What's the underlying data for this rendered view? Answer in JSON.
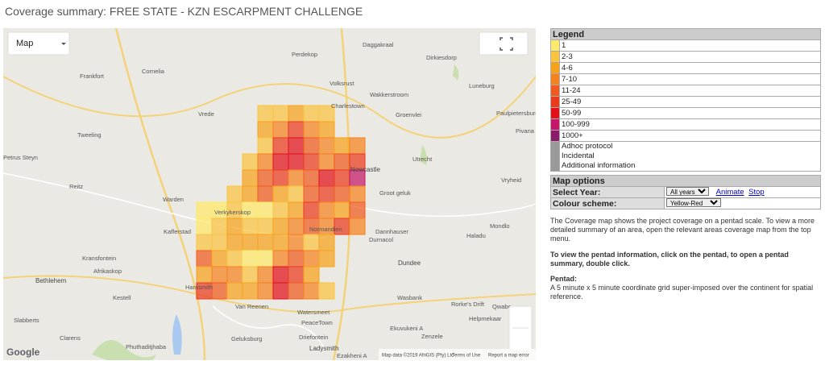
{
  "title": "Coverage summary: FREE STATE - KZN ESCARPMENT CHALLENGE",
  "map": {
    "map_type": "Map",
    "places": [
      "Perdekop",
      "Daggakraal",
      "Dirkiesdorp",
      "Frankfort",
      "Cornelia",
      "Volksrust",
      "Luneburg",
      "Wakkerstroom",
      "Vrede",
      "Charlestown",
      "Groenvlei",
      "Paulpietersburg",
      "Pivana",
      "Tweeling",
      "Petrus Steyn",
      "Utrecht",
      "Newcastle",
      "Reitz",
      "Groot geluk",
      "Vryheid",
      "Warden",
      "Verkykerskop",
      "Kafferstad",
      "Normandien",
      "Dannhauser",
      "Durnacol",
      "Mondlo",
      "Haladu",
      "Kransfontein",
      "Dundee",
      "Afrikaskop",
      "Bethlehem",
      "Harrismith",
      "Kestell",
      "Wasbank",
      "Rorke's Drift",
      "Qwabe",
      "Van Reenen",
      "Watersmeet",
      "Slabberts",
      "PeaceTown",
      "Helpmekaar",
      "Ekuvukeni A",
      "Clarens",
      "Zenzele",
      "Phuthaditjhaba",
      "Geluksburg",
      "Driefontein",
      "Ladysmith",
      "Ezakheni A"
    ],
    "logo": "Google",
    "attribution": "Map data ©2019 AfriGIS (Pty) Ltd",
    "terms": "Terms of Use",
    "report": "Report a map error"
  },
  "legend": {
    "title": "Legend",
    "items": [
      {
        "label": "1",
        "color": "#fde96a"
      },
      {
        "label": "2-3",
        "color": "#f9c440"
      },
      {
        "label": "4-6",
        "color": "#f7a21b"
      },
      {
        "label": "7-10",
        "color": "#f58220"
      },
      {
        "label": "11-24",
        "color": "#f05a1e"
      },
      {
        "label": "25-49",
        "color": "#ea3a1e"
      },
      {
        "label": "50-99",
        "color": "#e3101a"
      },
      {
        "label": "100-999",
        "color": "#c4176a"
      },
      {
        "label": "1000+",
        "color": "#8c1b6c"
      }
    ],
    "other_color": "#999999",
    "other": [
      "Adhoc protocol",
      "Incidental",
      "Additional information"
    ]
  },
  "map_options": {
    "title": "Map options",
    "select_year_label": "Select Year:",
    "year_value": "All years",
    "animate": "Animate",
    "stop": "Stop",
    "colour_scheme_label": "Colour scheme:",
    "colour_scheme_value": "Yellow-Red"
  },
  "description": [
    "The Coverage map shows the project coverage on a pentad scale. To view a more detailed summary of an area, open the relevant areas coverage map from the top menu.",
    "To view the pentad information, click on the pentad, to open a pentad summary, double click."
  ],
  "pentad": {
    "heading": "Pentad:",
    "text": "A 5 minute x 5 minute coordinate grid super-imposed over the continent for spatial reference."
  }
}
